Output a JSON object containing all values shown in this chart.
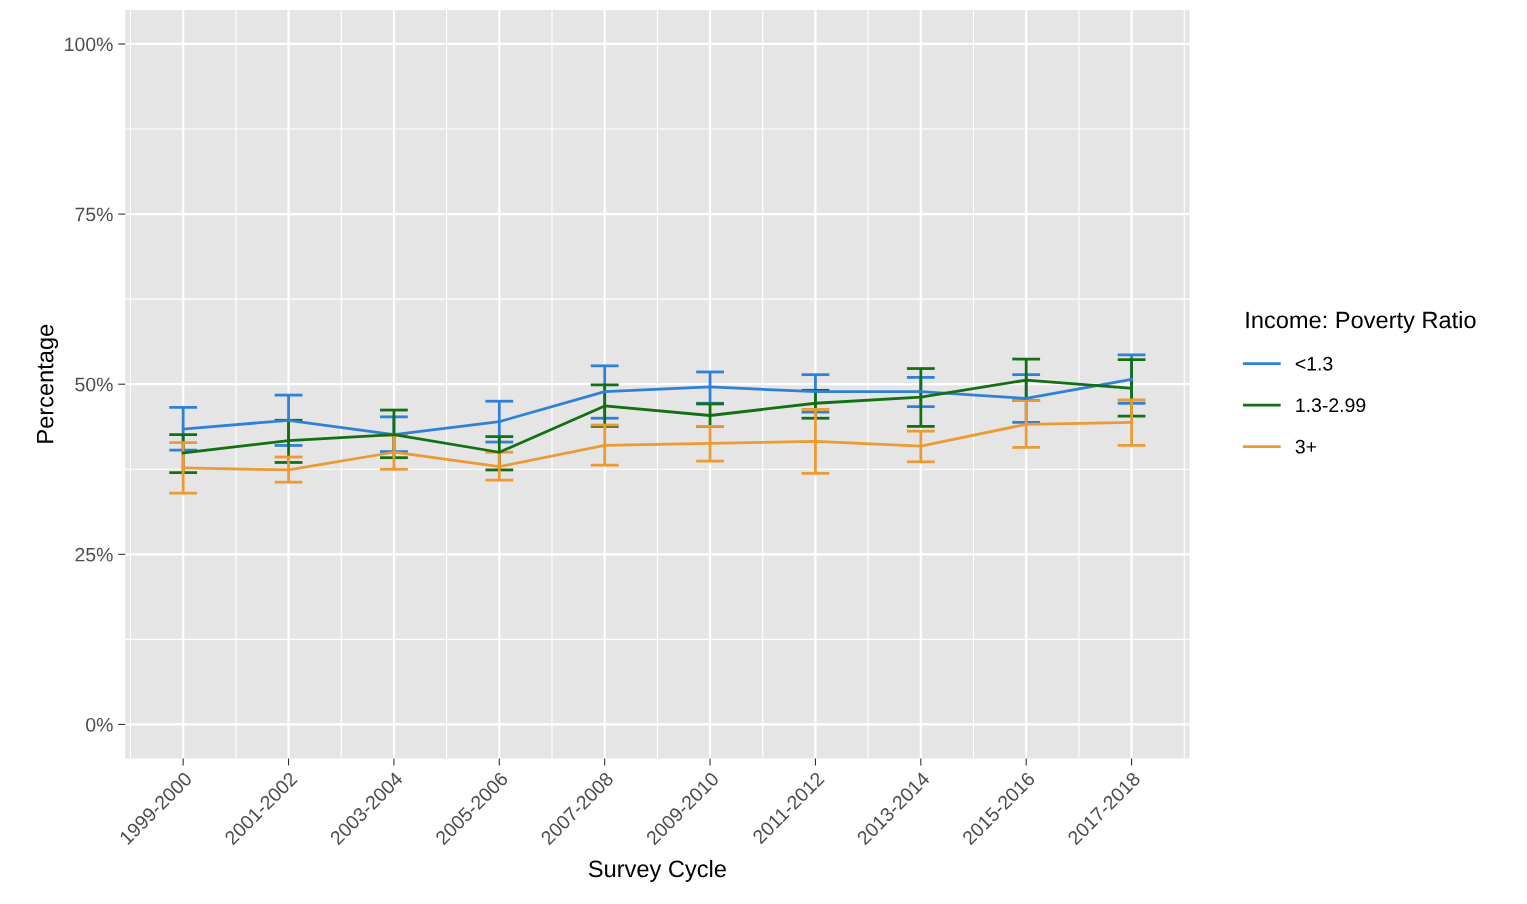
{
  "chart_data": {
    "type": "line",
    "xlabel": "Survey Cycle",
    "ylabel": "Percentage",
    "legend_title": "Income: Poverty Ratio",
    "categories": [
      "1999-2000",
      "2001-2002",
      "2003-2004",
      "2005-2006",
      "2007-2008",
      "2009-2010",
      "2011-2012",
      "2013-2014",
      "2015-2016",
      "2017-2018"
    ],
    "series": [
      {
        "name": "<1.3",
        "color": "#2f80d8",
        "values": [
          43.4,
          44.7,
          42.6,
          44.5,
          48.9,
          49.6,
          48.9,
          48.9,
          47.9,
          50.7
        ],
        "errors": [
          [
            40.3,
            46.6
          ],
          [
            41.0,
            48.4
          ],
          [
            40.1,
            45.2
          ],
          [
            41.5,
            47.5
          ],
          [
            45.0,
            52.7
          ],
          [
            47.2,
            51.8
          ],
          [
            45.9,
            51.4
          ],
          [
            46.7,
            51.0
          ],
          [
            44.4,
            51.4
          ],
          [
            47.2,
            54.3
          ]
        ]
      },
      {
        "name": "1.3-2.99",
        "color": "#127012",
        "values": [
          39.9,
          41.7,
          42.6,
          40.0,
          46.8,
          45.4,
          47.2,
          48.1,
          50.6,
          49.4
        ],
        "errors": [
          [
            37.0,
            42.6
          ],
          [
            38.5,
            44.7
          ],
          [
            39.2,
            46.2
          ],
          [
            37.4,
            42.3
          ],
          [
            43.8,
            49.9
          ],
          [
            43.8,
            47.1
          ],
          [
            45.0,
            49.1
          ],
          [
            43.8,
            52.3
          ],
          [
            47.6,
            53.7
          ],
          [
            45.3,
            53.6
          ]
        ]
      },
      {
        "name": "3+",
        "color": "#ec9a32",
        "values": [
          37.7,
          37.4,
          40.0,
          37.9,
          41.0,
          41.3,
          41.6,
          40.9,
          44.1,
          44.4
        ],
        "errors": [
          [
            34.0,
            41.4
          ],
          [
            35.6,
            39.3
          ],
          [
            37.5,
            42.5
          ],
          [
            35.9,
            40.0
          ],
          [
            38.1,
            44.0
          ],
          [
            38.7,
            43.8
          ],
          [
            36.9,
            46.3
          ],
          [
            38.6,
            43.1
          ],
          [
            40.7,
            47.6
          ],
          [
            41.0,
            47.7
          ]
        ]
      }
    ],
    "ylim": [
      -5,
      105
    ],
    "yticks": [
      {
        "value": 0,
        "label": "0%"
      },
      {
        "value": 25,
        "label": "25%"
      },
      {
        "value": 50,
        "label": "50%"
      },
      {
        "value": 75,
        "label": "75%"
      },
      {
        "value": 100,
        "label": "100%"
      }
    ],
    "grid": true,
    "legend": "right",
    "marker": "none",
    "line_style": "solid"
  }
}
